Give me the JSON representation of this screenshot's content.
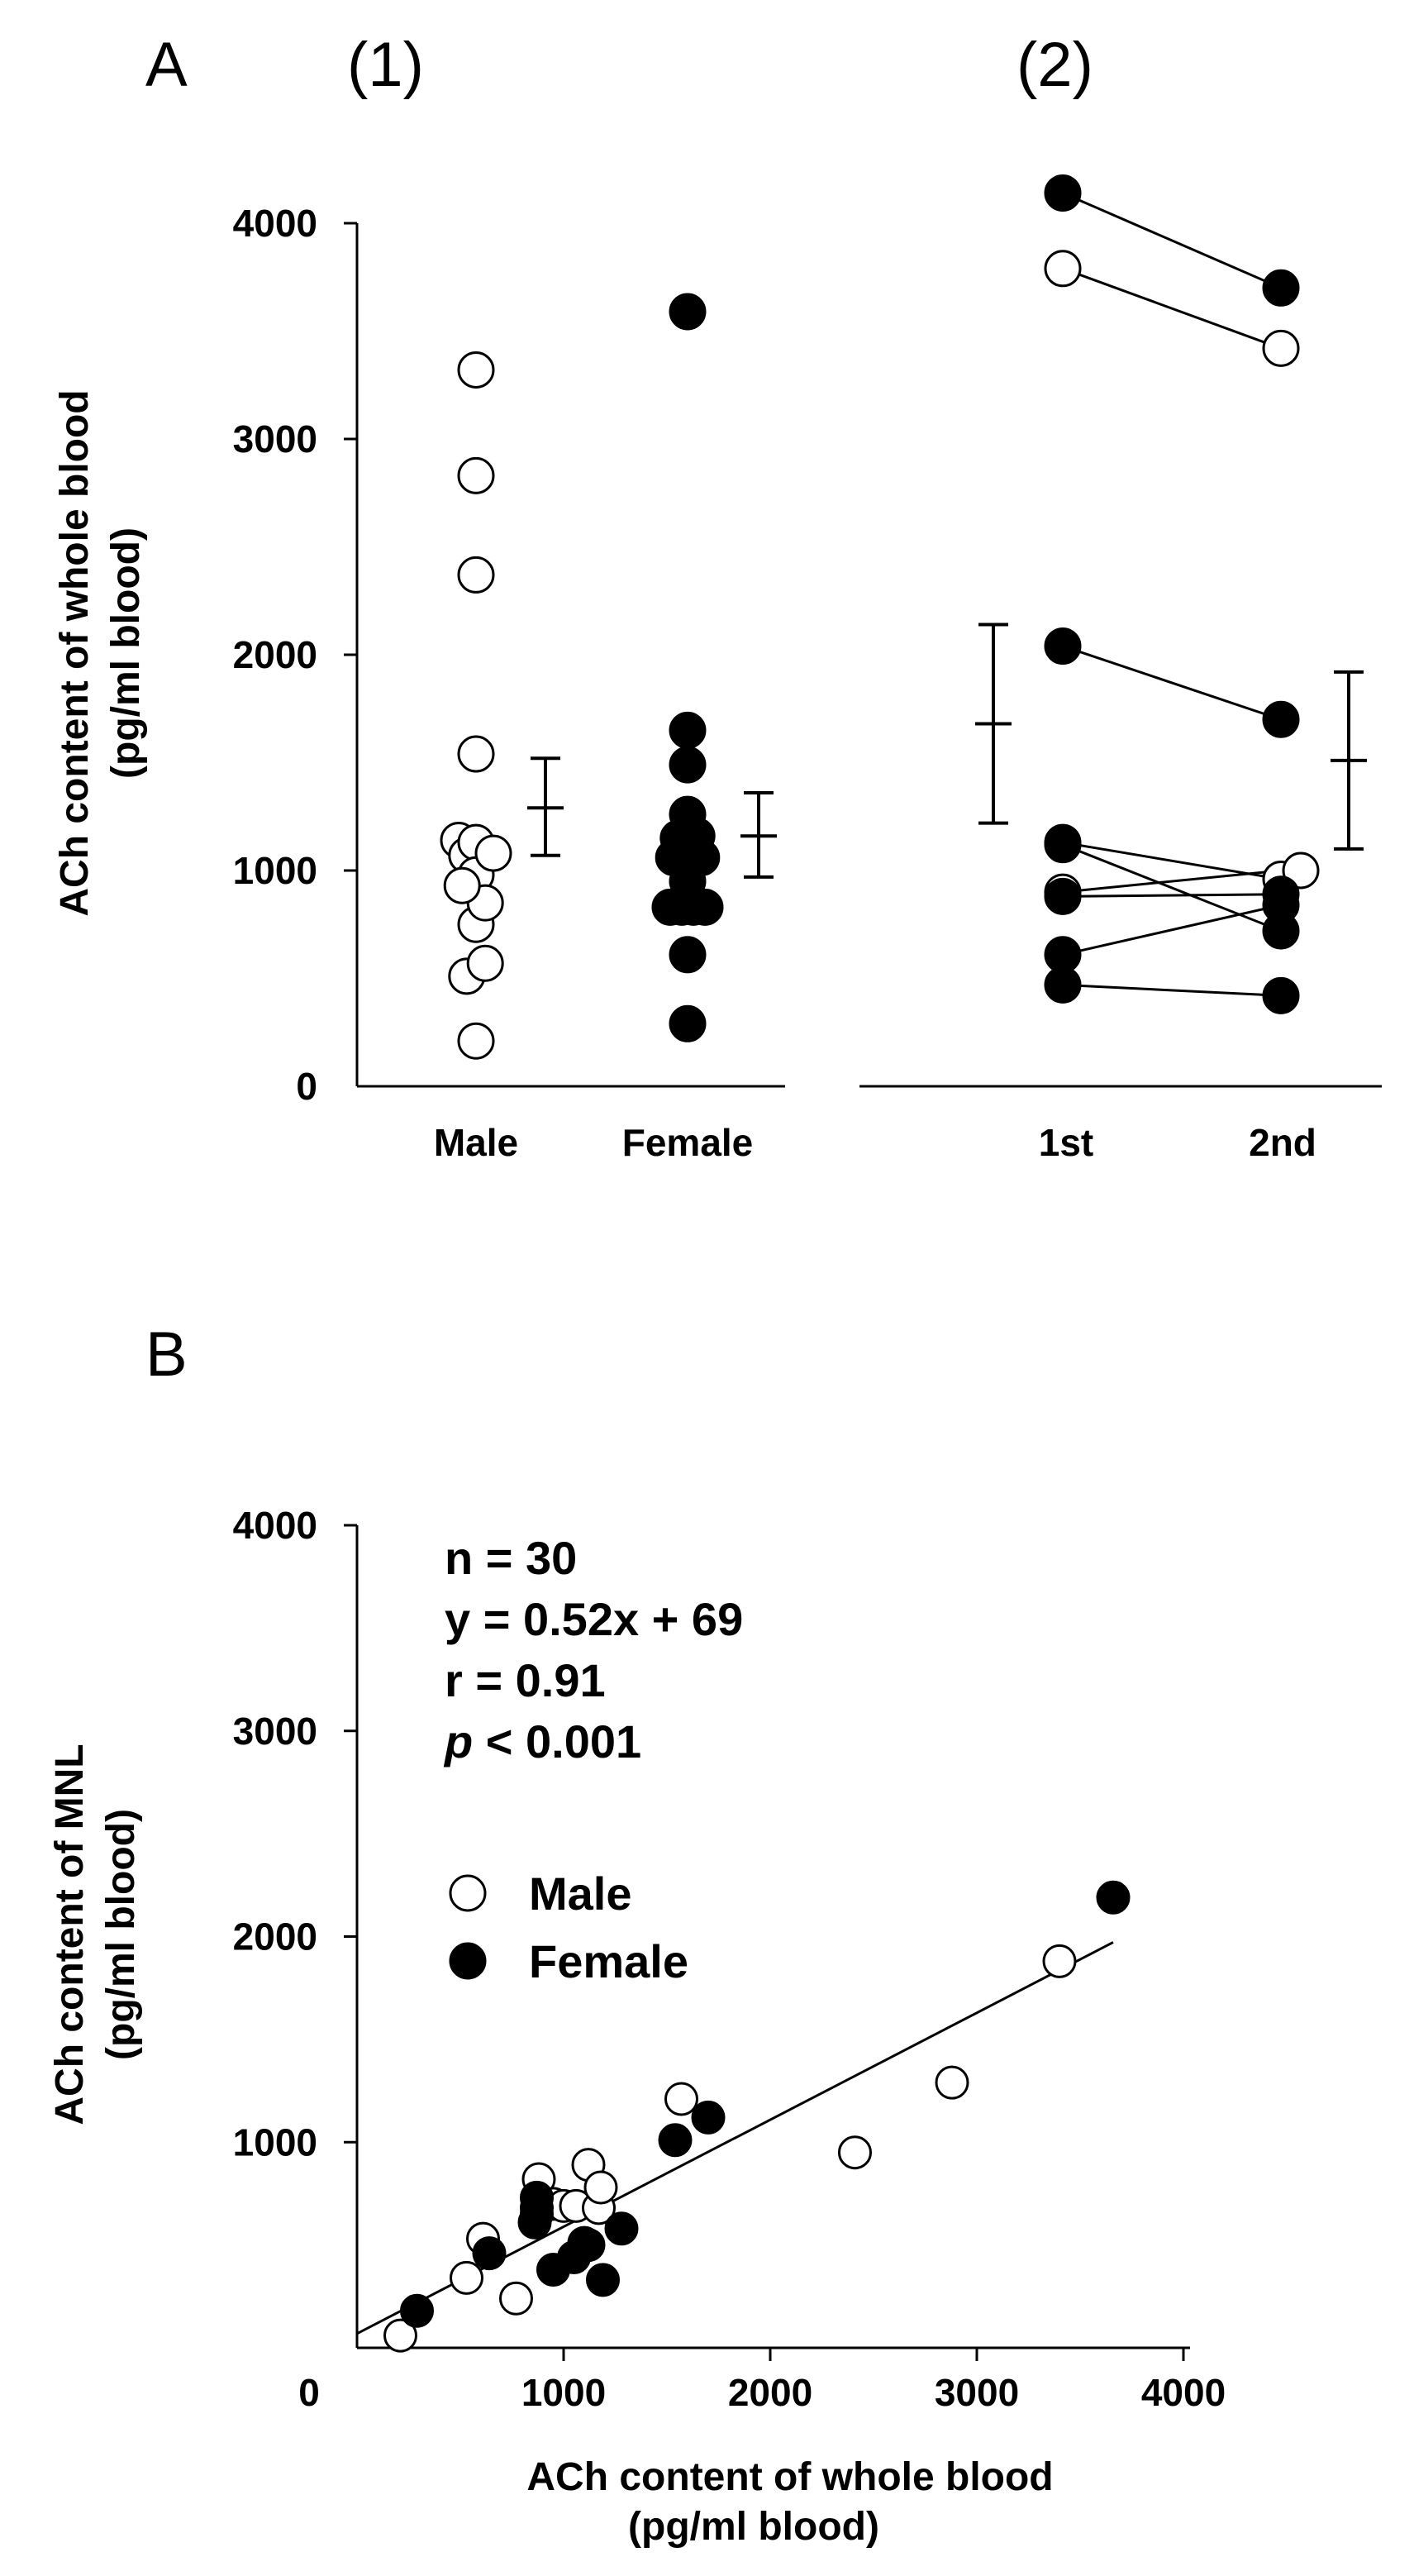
{
  "chart_data": [
    {
      "id": "A1",
      "type": "scatter",
      "panel_label": "A",
      "sublabel": "(1)",
      "ylabel_line1": "ACh content of whole blood",
      "ylabel_line2": "(pg/ml blood)",
      "ylim": [
        0,
        4000
      ],
      "yticks": [
        "4000",
        "3000",
        "2000",
        "1000",
        "0"
      ],
      "categories": [
        "Male",
        "Female"
      ],
      "groups": [
        {
          "name": "Male",
          "marker": "open",
          "points": [
            {
              "jitter": -0.15,
              "y": 1140
            },
            {
              "jitter": -0.08,
              "y": 1070
            },
            {
              "jitter": 0.0,
              "y": 3320
            },
            {
              "jitter": 0.0,
              "y": 2830
            },
            {
              "jitter": 0.0,
              "y": 2370
            },
            {
              "jitter": 0.0,
              "y": 1540
            },
            {
              "jitter": 0.0,
              "y": 1130
            },
            {
              "jitter": 0.0,
              "y": 980
            },
            {
              "jitter": 0.0,
              "y": 750
            },
            {
              "jitter": -0.08,
              "y": 510
            },
            {
              "jitter": 0.0,
              "y": 210
            },
            {
              "jitter": 0.08,
              "y": 850
            },
            {
              "jitter": 0.08,
              "y": 570
            },
            {
              "jitter": 0.15,
              "y": 1080
            },
            {
              "jitter": -0.12,
              "y": 930
            }
          ],
          "mean": 1290,
          "err_low": 1070,
          "err_high": 1520
        },
        {
          "name": "Female",
          "marker": "filled",
          "points": [
            {
              "jitter": 0.0,
              "y": 3590
            },
            {
              "jitter": 0.0,
              "y": 1650
            },
            {
              "jitter": 0.0,
              "y": 1490
            },
            {
              "jitter": 0.0,
              "y": 1260
            },
            {
              "jitter": -0.08,
              "y": 1150
            },
            {
              "jitter": 0.08,
              "y": 1160
            },
            {
              "jitter": -0.12,
              "y": 1060
            },
            {
              "jitter": 0.12,
              "y": 1060
            },
            {
              "jitter": -0.15,
              "y": 830
            },
            {
              "jitter": -0.05,
              "y": 830
            },
            {
              "jitter": 0.05,
              "y": 830
            },
            {
              "jitter": 0.15,
              "y": 830
            },
            {
              "jitter": 0.0,
              "y": 950
            },
            {
              "jitter": 0.0,
              "y": 610
            },
            {
              "jitter": 0.0,
              "y": 290
            }
          ],
          "mean": 1160,
          "err_low": 970,
          "err_high": 1360
        }
      ]
    },
    {
      "id": "A2",
      "type": "line",
      "sublabel": "(2)",
      "ylim": [
        0,
        4000
      ],
      "categories": [
        "1st",
        "2nd"
      ],
      "pairs": [
        {
          "marker": "filled",
          "y1": 4140,
          "y2": 3700
        },
        {
          "marker": "open",
          "y1": 3790,
          "y2": 3420
        },
        {
          "marker": "filled",
          "y1": 2040,
          "y2": 1700
        },
        {
          "marker": "open",
          "y1": 1130,
          "y2": 960
        },
        {
          "marker": "filled",
          "y1": 1120,
          "y2": 720
        },
        {
          "marker": "open",
          "y1": 900,
          "y2": 1000
        },
        {
          "marker": "filled",
          "y1": 880,
          "y2": 890
        },
        {
          "marker": "filled",
          "y1": 610,
          "y2": 840
        },
        {
          "marker": "filled",
          "y1": 470,
          "y2": 420
        }
      ],
      "summary": [
        {
          "position": "1st",
          "mean": 1680,
          "err_low": 1220,
          "err_high": 2140
        },
        {
          "position": "2nd",
          "mean": 1510,
          "err_low": 1100,
          "err_high": 1920
        }
      ]
    },
    {
      "id": "B",
      "type": "scatter",
      "panel_label": "B",
      "xlabel_line1": "ACh content of whole blood",
      "xlabel_line2": "(pg/ml blood)",
      "ylabel_line1": "ACh content of MNL",
      "ylabel_line2": "(pg/ml blood)",
      "xlim": [
        0,
        4000
      ],
      "ylim": [
        0,
        4000
      ],
      "xticks": [
        "0",
        "1000",
        "2000",
        "3000",
        "4000"
      ],
      "yticks": [
        "4000",
        "3000",
        "2000",
        "1000"
      ],
      "origin_label": "0",
      "stats": {
        "n": "n = 30",
        "equation": "y = 0.52x + 69",
        "r": "r = 0.91",
        "p_symbol": "p",
        "p_rest": " < 0.001"
      },
      "fit": {
        "slope": 0.52,
        "intercept": 69
      },
      "legend": [
        {
          "label": "Male",
          "marker": "open"
        },
        {
          "label": "Female",
          "marker": "filled"
        }
      ],
      "series": [
        {
          "name": "Male",
          "marker": "open",
          "points": [
            [
              210,
              60
            ],
            [
              530,
              340
            ],
            [
              610,
              530
            ],
            [
              770,
              240
            ],
            [
              880,
              820
            ],
            [
              950,
              700
            ],
            [
              1000,
              690
            ],
            [
              1060,
              690
            ],
            [
              1120,
              890
            ],
            [
              1170,
              680
            ],
            [
              1180,
              780
            ],
            [
              1570,
              1210
            ],
            [
              2410,
              950
            ],
            [
              2880,
              1290
            ],
            [
              3400,
              1880
            ]
          ]
        },
        {
          "name": "Female",
          "marker": "filled",
          "points": [
            [
              290,
              180
            ],
            [
              640,
              460
            ],
            [
              860,
              610
            ],
            [
              870,
              680
            ],
            [
              870,
              730
            ],
            [
              950,
              380
            ],
            [
              1050,
              440
            ],
            [
              1100,
              510
            ],
            [
              1120,
              500
            ],
            [
              1190,
              330
            ],
            [
              1280,
              580
            ],
            [
              1540,
              1010
            ],
            [
              1700,
              1120
            ],
            [
              3660,
              2190
            ],
            [
              870,
              650
            ]
          ]
        }
      ]
    }
  ]
}
